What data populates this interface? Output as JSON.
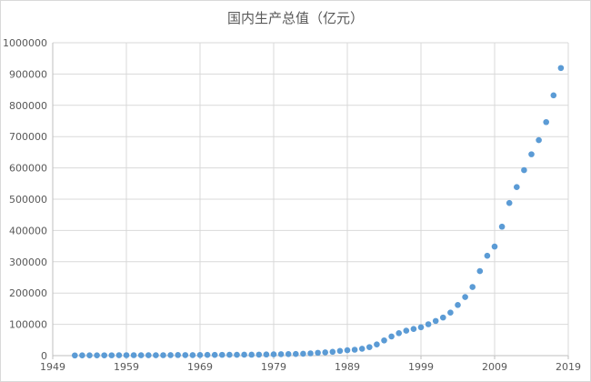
{
  "chart_data": {
    "type": "scatter",
    "title": "国内生产总值（亿元）",
    "xlabel": "",
    "ylabel": "",
    "xlim": [
      1949,
      2019
    ],
    "ylim": [
      0,
      1000000
    ],
    "x_ticks": [
      1949,
      1959,
      1969,
      1979,
      1989,
      1999,
      2009,
      2019
    ],
    "y_ticks": [
      0,
      100000,
      200000,
      300000,
      400000,
      500000,
      600000,
      700000,
      800000,
      900000,
      1000000
    ],
    "grid": true,
    "legend": "none",
    "marker_color": "#5b9bd5",
    "gridline_color": "#d9d9d9",
    "x": [
      1952,
      1953,
      1954,
      1955,
      1956,
      1957,
      1958,
      1959,
      1960,
      1961,
      1962,
      1963,
      1964,
      1965,
      1966,
      1967,
      1968,
      1969,
      1970,
      1971,
      1972,
      1973,
      1974,
      1975,
      1976,
      1977,
      1978,
      1979,
      1980,
      1981,
      1982,
      1983,
      1984,
      1985,
      1986,
      1987,
      1988,
      1989,
      1990,
      1991,
      1992,
      1993,
      1994,
      1995,
      1996,
      1997,
      1998,
      1999,
      2000,
      2001,
      2002,
      2003,
      2004,
      2005,
      2006,
      2007,
      2008,
      2009,
      2010,
      2011,
      2012,
      2013,
      2014,
      2015,
      2016,
      2017,
      2018
    ],
    "y": [
      679,
      824,
      859,
      911,
      1030,
      1071,
      1312,
      1447,
      1470,
      1232,
      1162,
      1248,
      1454,
      1717,
      1873,
      1780,
      1730,
      1946,
      2262,
      2435,
      2530,
      2733,
      2803,
      3013,
      2961,
      3221,
      3679,
      4101,
      4588,
      4936,
      5373,
      6021,
      7279,
      9099,
      10376,
      12175,
      15180,
      17180,
      18873,
      22006,
      27195,
      35673,
      48638,
      61340,
      71814,
      79715,
      85196,
      90564,
      100280,
      110863,
      121717,
      137422,
      161840,
      187319,
      219439,
      270092,
      319245,
      348518,
      412119,
      487940,
      538580,
      592963,
      643563,
      688858,
      746395,
      832036,
      919281
    ]
  }
}
